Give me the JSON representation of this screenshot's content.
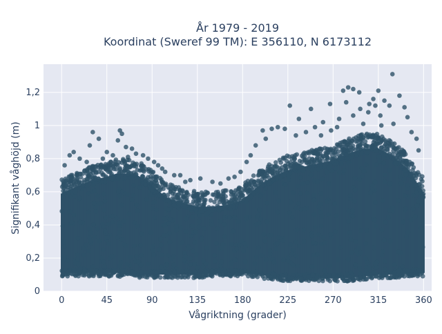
{
  "chart_data": {
    "type": "scatter",
    "title_line1": "År 1979 - 2019",
    "title_line2": "Koordinat (Sweref 99 TM): E 356110, N 6173112",
    "xlabel": "Vågriktning (grader)",
    "ylabel": "Signifikant våghöjd (m)",
    "xlim": [
      -18,
      368
    ],
    "ylim": [
      0,
      1.37
    ],
    "x_ticks": [
      0,
      45,
      90,
      135,
      180,
      225,
      270,
      315,
      360
    ],
    "x_tick_labels": [
      "0",
      "45",
      "90",
      "135",
      "180",
      "225",
      "270",
      "315",
      "360"
    ],
    "y_ticks": [
      0,
      0.2,
      0.4,
      0.6,
      0.8,
      1,
      1.2
    ],
    "y_tick_labels": [
      "0",
      "0,2",
      "0,4",
      "0,6",
      "0,8",
      "1",
      "1,2"
    ],
    "grid": true,
    "marker_color": "#2e5168",
    "plot_bg": "#e5e8f2",
    "envelope": {
      "x": [
        0,
        15,
        30,
        45,
        55,
        65,
        75,
        85,
        95,
        105,
        120,
        135,
        150,
        165,
        180,
        195,
        210,
        225,
        240,
        255,
        270,
        285,
        300,
        315,
        330,
        345,
        360
      ],
      "upper": [
        0.68,
        0.72,
        0.76,
        0.78,
        0.8,
        0.8,
        0.79,
        0.75,
        0.7,
        0.65,
        0.62,
        0.6,
        0.6,
        0.61,
        0.64,
        0.72,
        0.78,
        0.82,
        0.84,
        0.86,
        0.88,
        0.92,
        0.95,
        0.95,
        0.9,
        0.82,
        0.68
      ],
      "lower": [
        0.09,
        0.09,
        0.09,
        0.09,
        0.09,
        0.08,
        0.08,
        0.08,
        0.08,
        0.08,
        0.08,
        0.08,
        0.09,
        0.09,
        0.09,
        0.08,
        0.07,
        0.06,
        0.06,
        0.06,
        0.06,
        0.06,
        0.07,
        0.08,
        0.08,
        0.09,
        0.09
      ]
    },
    "outliers": [
      {
        "x": 329,
        "y": 1.31
      },
      {
        "x": 285,
        "y": 1.23
      },
      {
        "x": 290,
        "y": 1.22
      },
      {
        "x": 280,
        "y": 1.21
      },
      {
        "x": 296,
        "y": 1.2
      },
      {
        "x": 315,
        "y": 1.21
      },
      {
        "x": 336,
        "y": 1.18
      },
      {
        "x": 310,
        "y": 1.16
      },
      {
        "x": 321,
        "y": 1.15
      },
      {
        "x": 267,
        "y": 1.13
      },
      {
        "x": 227,
        "y": 1.12
      },
      {
        "x": 248,
        "y": 1.1
      },
      {
        "x": 297,
        "y": 1.1
      },
      {
        "x": 305,
        "y": 1.08
      },
      {
        "x": 341,
        "y": 1.11
      },
      {
        "x": 326,
        "y": 1.12
      },
      {
        "x": 236,
        "y": 1.04
      },
      {
        "x": 260,
        "y": 1.02
      },
      {
        "x": 276,
        "y": 1.04
      },
      {
        "x": 317,
        "y": 1.06
      },
      {
        "x": 290,
        "y": 1.06
      },
      {
        "x": 222,
        "y": 0.98
      },
      {
        "x": 215,
        "y": 0.99
      },
      {
        "x": 209,
        "y": 0.98
      },
      {
        "x": 200,
        "y": 0.97
      },
      {
        "x": 252,
        "y": 0.99
      },
      {
        "x": 243,
        "y": 0.96
      },
      {
        "x": 268,
        "y": 0.97
      },
      {
        "x": 300,
        "y": 1.01
      },
      {
        "x": 330,
        "y": 1.01
      },
      {
        "x": 348,
        "y": 0.96
      },
      {
        "x": 353,
        "y": 0.92
      },
      {
        "x": 355,
        "y": 0.85
      },
      {
        "x": 58,
        "y": 0.97
      },
      {
        "x": 60,
        "y": 0.95
      },
      {
        "x": 31,
        "y": 0.96
      },
      {
        "x": 37,
        "y": 0.92
      },
      {
        "x": 28,
        "y": 0.88
      },
      {
        "x": 56,
        "y": 0.91
      },
      {
        "x": 64,
        "y": 0.87
      },
      {
        "x": 70,
        "y": 0.86
      },
      {
        "x": 74,
        "y": 0.83
      },
      {
        "x": 81,
        "y": 0.82
      },
      {
        "x": 86,
        "y": 0.8
      },
      {
        "x": 92,
        "y": 0.78
      },
      {
        "x": 96,
        "y": 0.76
      },
      {
        "x": 12,
        "y": 0.84
      },
      {
        "x": 18,
        "y": 0.8
      },
      {
        "x": 8,
        "y": 0.82
      },
      {
        "x": 3,
        "y": 0.76
      },
      {
        "x": 45,
        "y": 0.84
      },
      {
        "x": 41,
        "y": 0.8
      },
      {
        "x": 49,
        "y": 0.78
      },
      {
        "x": 103,
        "y": 0.72
      },
      {
        "x": 112,
        "y": 0.7
      },
      {
        "x": 118,
        "y": 0.7
      },
      {
        "x": 123,
        "y": 0.66
      },
      {
        "x": 138,
        "y": 0.68
      },
      {
        "x": 128,
        "y": 0.67
      },
      {
        "x": 150,
        "y": 0.66
      },
      {
        "x": 158,
        "y": 0.65
      },
      {
        "x": 166,
        "y": 0.68
      },
      {
        "x": 172,
        "y": 0.69
      },
      {
        "x": 178,
        "y": 0.72
      },
      {
        "x": 184,
        "y": 0.78
      },
      {
        "x": 188,
        "y": 0.82
      },
      {
        "x": 193,
        "y": 0.88
      },
      {
        "x": 203,
        "y": 0.92
      },
      {
        "x": 233,
        "y": 0.94
      },
      {
        "x": 258,
        "y": 0.94
      },
      {
        "x": 274,
        "y": 0.99
      },
      {
        "x": 306,
        "y": 1.13
      },
      {
        "x": 312,
        "y": 1.12
      },
      {
        "x": 344,
        "y": 1.05
      },
      {
        "x": 318,
        "y": 1.0
      },
      {
        "x": 283,
        "y": 1.14
      },
      {
        "x": 25,
        "y": 0.78
      },
      {
        "x": 51,
        "y": 0.82
      },
      {
        "x": 66,
        "y": 0.81
      },
      {
        "x": 100,
        "y": 0.74
      }
    ]
  }
}
